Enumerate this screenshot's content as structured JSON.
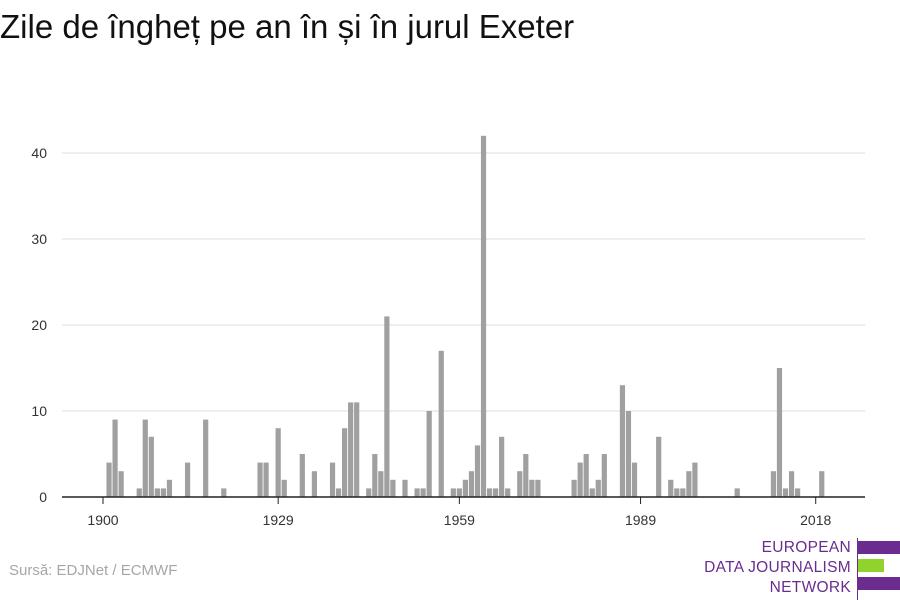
{
  "title": "Zile de îngheț pe an în și în jurul Exeter",
  "source": "Sursă: EDJNet / ECMWF",
  "logo": {
    "lines": [
      "EUROPEAN",
      "DATA JOURNALISM",
      "NETWORK"
    ],
    "colors": {
      "purple": "#6a2c8e",
      "green": "#8fd32c"
    }
  },
  "colors": {
    "bar": "#a0a0a0",
    "grid": "#dddddd",
    "axis": "#222222"
  },
  "chart_data": {
    "type": "bar",
    "title": "Zile de îngheț pe an în și în jurul Exeter",
    "xlabel": "",
    "ylabel": "",
    "x_ticks": [
      1900,
      1929,
      1959,
      1989,
      2018
    ],
    "y_ticks": [
      0,
      10,
      20,
      30,
      40
    ],
    "ylim": [
      0,
      45
    ],
    "xlim": [
      1900,
      2020
    ],
    "grid": true,
    "categories": [
      1900,
      1901,
      1902,
      1903,
      1904,
      1905,
      1906,
      1907,
      1908,
      1909,
      1910,
      1911,
      1912,
      1913,
      1914,
      1915,
      1916,
      1917,
      1918,
      1919,
      1920,
      1921,
      1922,
      1923,
      1924,
      1925,
      1926,
      1927,
      1928,
      1929,
      1930,
      1931,
      1932,
      1933,
      1934,
      1935,
      1936,
      1937,
      1938,
      1939,
      1940,
      1941,
      1942,
      1943,
      1944,
      1945,
      1946,
      1947,
      1948,
      1949,
      1950,
      1951,
      1952,
      1953,
      1954,
      1955,
      1956,
      1957,
      1958,
      1959,
      1960,
      1961,
      1962,
      1963,
      1964,
      1965,
      1966,
      1967,
      1968,
      1969,
      1970,
      1971,
      1972,
      1973,
      1974,
      1975,
      1976,
      1977,
      1978,
      1979,
      1980,
      1981,
      1982,
      1983,
      1984,
      1985,
      1986,
      1987,
      1988,
      1989,
      1990,
      1991,
      1992,
      1993,
      1994,
      1995,
      1996,
      1997,
      1998,
      1999,
      2000,
      2001,
      2002,
      2003,
      2004,
      2005,
      2006,
      2007,
      2008,
      2009,
      2010,
      2011,
      2012,
      2013,
      2014,
      2015,
      2016,
      2017,
      2018,
      2019,
      2020
    ],
    "values": [
      0,
      4,
      9,
      3,
      0,
      0,
      1,
      9,
      7,
      1,
      1,
      2,
      0,
      0,
      4,
      0,
      0,
      9,
      0,
      0,
      1,
      0,
      0,
      0,
      0,
      0,
      4,
      4,
      0,
      8,
      2,
      0,
      0,
      5,
      0,
      3,
      0,
      0,
      4,
      1,
      8,
      11,
      11,
      0,
      1,
      5,
      3,
      21,
      2,
      0,
      2,
      0,
      1,
      1,
      10,
      0,
      17,
      0,
      1,
      1,
      2,
      3,
      6,
      42,
      1,
      1,
      7,
      1,
      0,
      3,
      5,
      2,
      2,
      0,
      0,
      0,
      0,
      0,
      2,
      4,
      5,
      1,
      2,
      5,
      0,
      0,
      13,
      10,
      4,
      0,
      0,
      0,
      7,
      0,
      2,
      1,
      1,
      3,
      4,
      0,
      0,
      0,
      0,
      0,
      0,
      1,
      0,
      0,
      0,
      0,
      0,
      3,
      15,
      1,
      3,
      1,
      0,
      0,
      0,
      3,
      0
    ]
  }
}
